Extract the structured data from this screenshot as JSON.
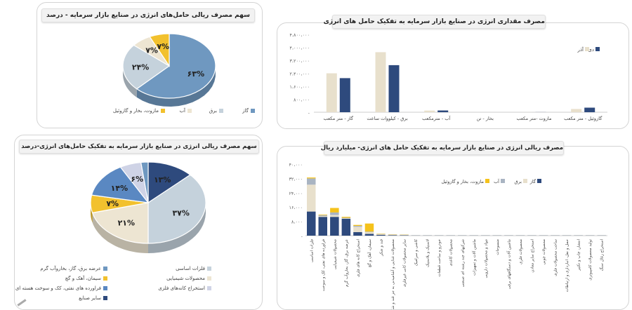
{
  "colors": {
    "gas": "#2e4a7d",
    "electricity": "#e8e0cc",
    "water": "#a9b4c2",
    "fuel": "#f5c21b",
    "pie_gas": "#6f98c0",
    "pie_elec": "#c5d2dc",
    "pie_water": "#ede5d2",
    "pie_fuel": "#f2c12e"
  },
  "pie1": {
    "title": "سهم مصرف ریالی حامل‌های انرژی در صنایع بازار سرمایه - درصد",
    "legend": [
      "گاز",
      "برق",
      "آب",
      "مازوت، بخار و گازوئیل"
    ]
  },
  "pie2": {
    "title": "سهم مصرف ریالی انرژی در صنایع  بازار سرمایه به تفکیک حامل‌های انرژی-درصد",
    "legend": [
      "فلزات اساسی",
      "عرضه برق، گاز، بخاروآب گرم",
      "محصولات شیمیایی",
      "سیمان، آهک و گچ",
      "استخراج کانه‌های فلزی",
      "فراورده های نفتی، کک و سوخت هسته ای",
      "سایر صنایع"
    ]
  },
  "bar1": {
    "title": "مصرف مقداری انرژی در صنایع بازار سرمایه به تفکیک حامل های انرژی",
    "legend": [
      "دی",
      "آذر"
    ]
  },
  "bar2": {
    "title": "مصرف ریالی انرژی در صنایع بازار سرمایه به تفکیک حامل های انرژی- میلیارد ریال",
    "legend": [
      "گاز",
      "برق",
      "آب",
      "مازوت، بخار و گازوئیل"
    ]
  },
  "chart_data": [
    {
      "type": "pie",
      "title": "سهم مصرف ریالی حامل‌های انرژی در صنایع بازار سرمایه - درصد",
      "labels": [
        "گاز",
        "برق",
        "آب",
        "مازوت، بخار و گازوئیل"
      ],
      "values": [
        63,
        24,
        7,
        7
      ],
      "value_labels": [
        "۶۳%",
        "۲۴%",
        "۷%",
        "۷%"
      ]
    },
    {
      "type": "pie",
      "title": "سهم مصرف ریالی انرژی در صنایع  بازار سرمایه به تفکیک حامل‌های انرژی-درصد",
      "labels": [
        "عرضه برق، گاز، بخاروآب گرم",
        "فلزات اساسی",
        "محصولات شیمیایی",
        "سیمان، آهک و گچ",
        "فراورده های نفتی، کک و سوخت هسته ای",
        "استخراج کانه‌های فلزی",
        "سایر صنایع"
      ],
      "values": [
        13,
        37,
        21,
        7,
        14,
        6,
        2
      ],
      "value_labels": [
        "۱۳%",
        "۳۷%",
        "۲۱%",
        "۷%",
        "۱۴%",
        "۶%",
        ""
      ]
    },
    {
      "type": "bar",
      "title": "مصرف مقداری انرژی در صنایع بازار سرمایه به تفکیک حامل های انرژی",
      "categories": [
        "گاز - متر مکعب",
        "برق - کیلووات ساعت",
        "آب - مترمکعب",
        "بخار - تن",
        "مازوت -متر مکعب",
        "گازوئیل - متر مکعب"
      ],
      "series": [
        {
          "name": "آذر",
          "values": [
            2400000,
            3700000,
            100000,
            0,
            5000,
            200000
          ]
        },
        {
          "name": "دی",
          "values": [
            2100000,
            2900000,
            110000,
            0,
            4000,
            280000
          ]
        }
      ],
      "yticks": [
        "۴،۸۰۰،۰۰۰",
        "۴،۰۰۰،۰۰۰",
        "۳،۲۰۰،۰۰۰",
        "۲،۴۰۰،۰۰۰",
        "۱،۶۰۰،۰۰۰",
        "۸۰۰،۰۰۰",
        "-"
      ],
      "ylim": [
        0,
        4800000
      ]
    },
    {
      "type": "bar",
      "stacked": true,
      "title": "مصرف ریالی انرژی در صنایع بازار سرمایه به تفکیک حامل های انرژی- میلیارد ریال",
      "categories": [
        "فلزات اساسی",
        "فراورده های نفتی، کک و سوخت",
        "محصولات شیمیایی",
        "عرضه برق، گاز، بخاروآب گرم",
        "استخراج کانه های فلزی",
        "سیمان، آهک و گچ",
        "قند و شکر",
        "محصولات غذایی و آشامیدنی به جز قند و شکر",
        "سایر محصولات کانی غیرفلزی",
        "کاشی و سرامیک",
        "لاستیک و پلاستیک",
        "خودرو و ساخت قطعات",
        "محصولات کاغذی",
        "شرکتهای چند رشته ای صنعتی",
        "ماشین آلات و تجهیزات",
        "مواد و محصولات دارویی",
        "منسوجات",
        "ماشین آلات و دستگاههای برقی",
        "محصولات فلزی",
        "استخراج سایر معادن",
        "محصولات چوبی",
        "ساخت محصولات فلزی",
        "حمل و نقل، انبارداری و ارتباطات",
        "انتشار، چاپ و تکثیر",
        "تولید محصولات کامپیوتری",
        "استخراج زغال سنگ"
      ],
      "series": [
        {
          "name": "گاز",
          "values": [
            13.5,
            10.5,
            10.5,
            9.5,
            2.0,
            1.0,
            0.5,
            0.3,
            0.2,
            0.1,
            0.1,
            0.1,
            0.1,
            0.1,
            0.1,
            0.1,
            0.1,
            0.1,
            0.1,
            0.1,
            0.1,
            0.1,
            0.1,
            0.1,
            0.1,
            0.1
          ]
        },
        {
          "name": "برق",
          "values": [
            15.0,
            0.5,
            1.0,
            0.3,
            3.0,
            1.0,
            0.3,
            0.3,
            0.2,
            0.1,
            0.1,
            0.1,
            0.1,
            0.1,
            0.1,
            0.1,
            0.1,
            0.1,
            0.1,
            0.1,
            0.1,
            0.1,
            0.1,
            0.1,
            0.1,
            0.1
          ]
        },
        {
          "name": "آب",
          "values": [
            3.5,
            0.5,
            1.5,
            0.2,
            0.5,
            0.3,
            0.1,
            0.1,
            0.1,
            0.1,
            0.1,
            0.1,
            0.1,
            0.1,
            0.1,
            0.1,
            0.1,
            0.1,
            0.1,
            0.1,
            0.1,
            0.1,
            0.1,
            0.1,
            0.1,
            0.1
          ]
        },
        {
          "name": "مازوت، بخار و گازوئیل",
          "values": [
            0.5,
            0.3,
            2.5,
            0.5,
            0.5,
            4.5,
            0.2,
            0.1,
            0.1,
            0.0,
            0.0,
            0.0,
            0.0,
            0.0,
            0.0,
            0.0,
            0.0,
            0.0,
            0.0,
            0.0,
            0.0,
            0.0,
            0.0,
            0.0,
            0.0,
            0.0
          ]
        }
      ],
      "yticks": [
        "۴۰،۰۰۰",
        "۳۲،۰۰۰",
        "۲۴،۰۰۰",
        "۱۶،۰۰۰",
        "۸،۰۰۰",
        "-"
      ],
      "ylim": [
        0,
        40
      ]
    }
  ]
}
